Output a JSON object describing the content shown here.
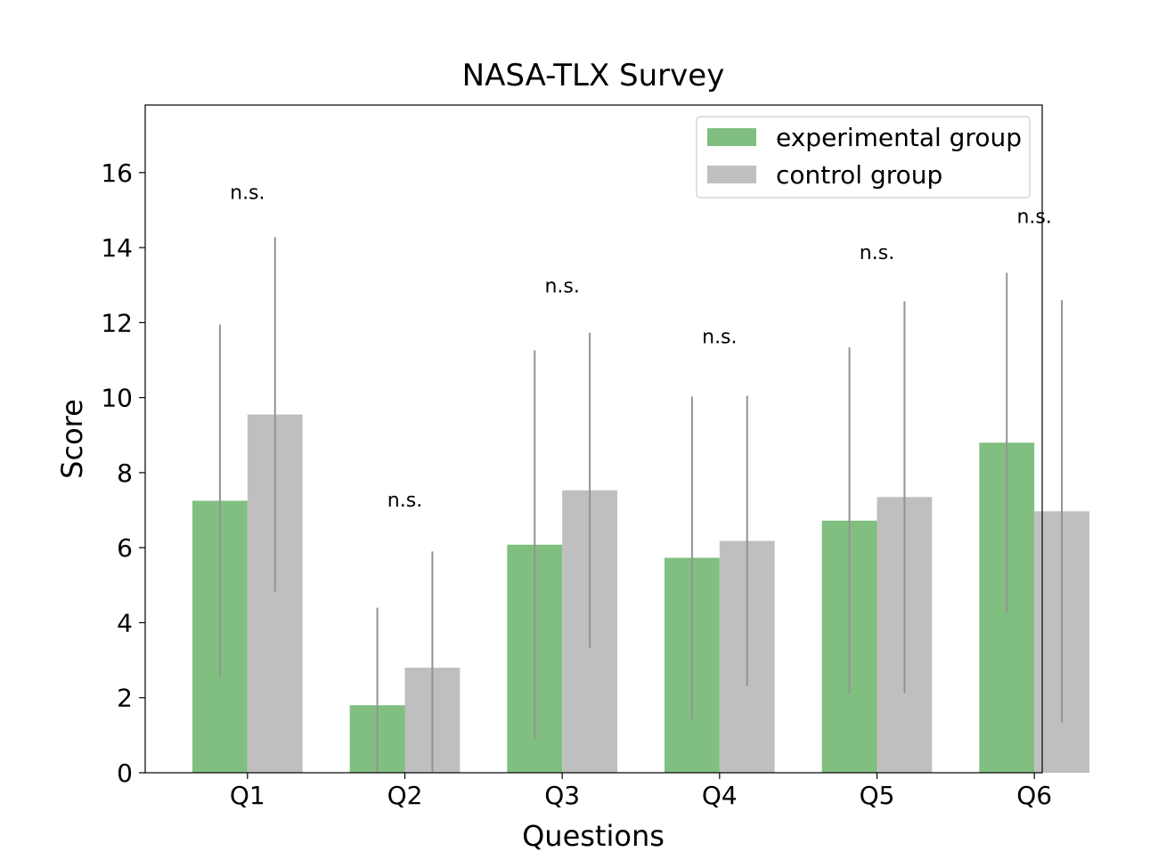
{
  "chart_data": {
    "type": "bar",
    "title": "NASA-TLX Survey",
    "xlabel": "Questions",
    "ylabel": "Score",
    "categories": [
      "Q1",
      "Q2",
      "Q3",
      "Q4",
      "Q5",
      "Q6"
    ],
    "ylim": [
      0,
      17.8
    ],
    "yticks": [
      0,
      2,
      4,
      6,
      8,
      10,
      12,
      14,
      16
    ],
    "grid": false,
    "legend_position": "top-right",
    "series": [
      {
        "name": "experimental group",
        "color": "#80bf80",
        "values": [
          7.25,
          1.8,
          6.08,
          5.73,
          6.72,
          8.8
        ],
        "error": [
          4.7,
          2.6,
          5.18,
          4.3,
          4.62,
          4.53
        ]
      },
      {
        "name": "control group",
        "color": "#bfbfbf",
        "values": [
          9.55,
          2.8,
          7.53,
          6.18,
          7.35,
          6.97
        ],
        "error": [
          4.73,
          3.1,
          4.2,
          3.87,
          5.22,
          5.63
        ]
      }
    ],
    "error_color": "#949494",
    "annotations": [
      {
        "category": "Q1",
        "text": "n.s.",
        "y": 15.3
      },
      {
        "category": "Q2",
        "text": "n.s.",
        "y": 7.1
      },
      {
        "category": "Q3",
        "text": "n.s.",
        "y": 12.8
      },
      {
        "category": "Q4",
        "text": "n.s.",
        "y": 11.45
      },
      {
        "category": "Q5",
        "text": "n.s.",
        "y": 13.7
      },
      {
        "category": "Q6",
        "text": "n.s.",
        "y": 14.65
      }
    ]
  }
}
